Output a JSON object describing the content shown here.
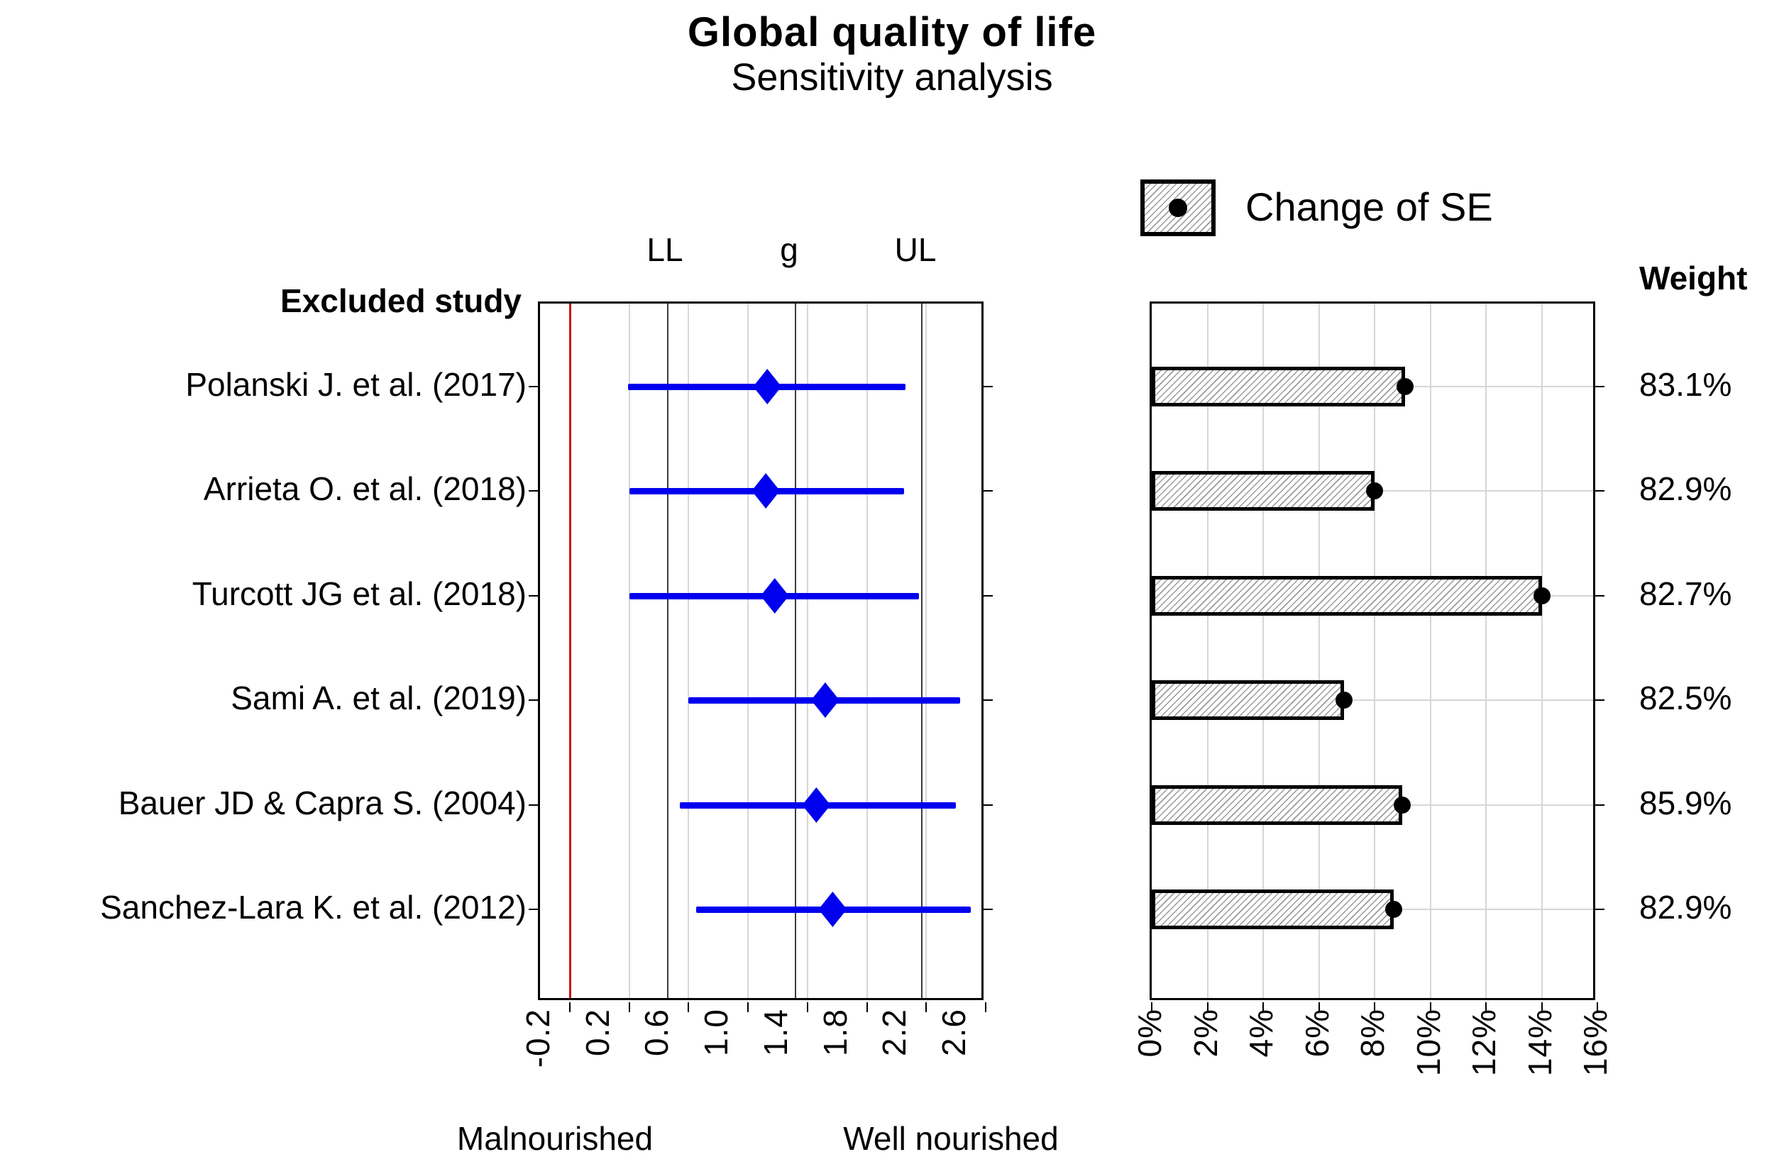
{
  "title": {
    "line1": "Global quality of life",
    "line2": "Sensitivity analysis"
  },
  "legend": {
    "label": "Change of SE"
  },
  "headers": {
    "excluded_study": "Excluded study",
    "ll": "LL",
    "g": "g",
    "ul": "UL",
    "weight": "Weight"
  },
  "forest_axis": {
    "xlim": [
      -0.2,
      2.8
    ],
    "tick_values": [
      -0.2,
      0.2,
      0.6,
      1.0,
      1.4,
      1.8,
      2.2,
      2.6
    ],
    "tick_labels": [
      "-0.2",
      "0.2",
      "0.6",
      "1.0",
      "1.4",
      "1.8",
      "2.2",
      "2.6"
    ],
    "grid_values": [
      0.4,
      0.8,
      1.2,
      1.6,
      2.0,
      2.4
    ],
    "tick_mark_values": [
      0,
      0.4,
      0.8,
      1.2,
      1.6,
      2.0,
      2.4,
      2.8
    ],
    "reference_zero": 0,
    "pooled": {
      "ll": 0.66,
      "g": 1.52,
      "ul": 2.37
    },
    "label_left": "Malnourished",
    "label_right": "Well nourished"
  },
  "se_axis": {
    "xlim": [
      0,
      16
    ],
    "tick_values": [
      0,
      2,
      4,
      6,
      8,
      10,
      12,
      14,
      16
    ],
    "tick_labels": [
      "0%",
      "2%",
      "4%",
      "6%",
      "8%",
      "10%",
      "12%",
      "14%",
      "16%"
    ],
    "grid_values": [
      2,
      4,
      6,
      8,
      10,
      12,
      14
    ]
  },
  "studies": [
    {
      "label": "Polanski J. et al. (2017)",
      "g": 1.33,
      "ll": 0.39,
      "ul": 2.26,
      "se_change": 9.1,
      "weight": "83.1%"
    },
    {
      "label": "Arrieta O. et al. (2018)",
      "g": 1.32,
      "ll": 0.4,
      "ul": 2.25,
      "se_change": 8.0,
      "weight": "82.9%"
    },
    {
      "label": "Turcott JG et al. (2018)",
      "g": 1.38,
      "ll": 0.4,
      "ul": 2.35,
      "se_change": 14.0,
      "weight": "82.7%"
    },
    {
      "label": "Sami A. et al. (2019)",
      "g": 1.72,
      "ll": 0.8,
      "ul": 2.63,
      "se_change": 6.9,
      "weight": "82.5%"
    },
    {
      "label": "Bauer JD & Capra S. (2004)",
      "g": 1.66,
      "ll": 0.74,
      "ul": 2.6,
      "se_change": 9.0,
      "weight": "85.9%"
    },
    {
      "label": "Sanchez-Lara K. et al. (2012)",
      "g": 1.77,
      "ll": 0.85,
      "ul": 2.7,
      "se_change": 8.7,
      "weight": "82.9%"
    }
  ],
  "colors": {
    "blue": "#0000ee",
    "red": "#cc1111",
    "grid_light": "#d6d6d6",
    "grid_dark": "#3c3c3c",
    "frame": "#000000",
    "hatch": "#9a9a9a",
    "dot": "#000000"
  },
  "chart_data": [
    {
      "type": "scatter",
      "subtype": "forest-leave-one-out",
      "title": "Global quality of life",
      "subtitle": "Sensitivity analysis",
      "ylabel": "Excluded study",
      "categories": [
        "Polanski J. et al. (2017)",
        "Arrieta O. et al. (2018)",
        "Turcott JG et al. (2018)",
        "Sami A. et al. (2019)",
        "Bauer JD & Capra S. (2004)",
        "Sanchez-Lara K. et al. (2012)"
      ],
      "series": [
        {
          "name": "g",
          "values": [
            1.33,
            1.32,
            1.38,
            1.72,
            1.66,
            1.77
          ]
        },
        {
          "name": "LL",
          "values": [
            0.39,
            0.4,
            0.4,
            0.8,
            0.74,
            0.85
          ]
        },
        {
          "name": "UL",
          "values": [
            2.26,
            2.25,
            2.35,
            2.63,
            2.6,
            2.7
          ]
        }
      ],
      "xlim": [
        -0.2,
        2.8
      ],
      "xticks": [
        -0.2,
        0.2,
        0.6,
        1.0,
        1.4,
        1.8,
        2.2,
        2.6
      ],
      "reference_lines": {
        "zero": 0,
        "pooled_LL": 0.66,
        "pooled_g": 1.52,
        "pooled_UL": 2.37
      },
      "column_headers": [
        "LL",
        "g",
        "UL"
      ],
      "x_annotations": [
        "Malnourished",
        "Well nourished"
      ],
      "grid": "vertical"
    },
    {
      "type": "bar",
      "orientation": "horizontal",
      "title": "Change of SE",
      "legend": [
        "Change of SE"
      ],
      "legend_position": "top",
      "categories": [
        "Polanski J. et al. (2017)",
        "Arrieta O. et al. (2018)",
        "Turcott JG et al. (2018)",
        "Sami A. et al. (2019)",
        "Bauer JD & Capra S. (2004)",
        "Sanchez-Lara K. et al. (2012)"
      ],
      "values": [
        9.1,
        8.0,
        14.0,
        6.9,
        9.0,
        8.7
      ],
      "unit": "%",
      "xlim": [
        0,
        16
      ],
      "xticks": [
        0,
        2,
        4,
        6,
        8,
        10,
        12,
        14,
        16
      ],
      "grid": "both"
    },
    {
      "type": "table",
      "title": "Weight",
      "categories": [
        "Polanski J. et al. (2017)",
        "Arrieta O. et al. (2018)",
        "Turcott JG et al. (2018)",
        "Sami A. et al. (2019)",
        "Bauer JD & Capra S. (2004)",
        "Sanchez-Lara K. et al. (2012)"
      ],
      "values": [
        "83.1%",
        "82.9%",
        "82.7%",
        "82.5%",
        "85.9%",
        "82.9%"
      ]
    }
  ]
}
